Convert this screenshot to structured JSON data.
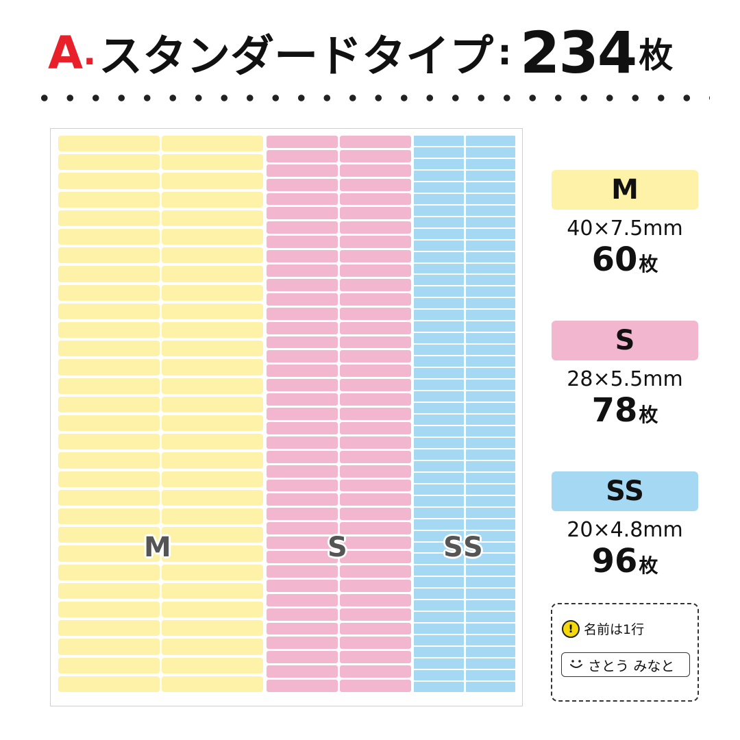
{
  "header": {
    "letter": "A",
    "dot": ".",
    "title": "スタンダードタイプ",
    "colon": ":",
    "count": "234",
    "unit": "枚"
  },
  "sheet": {
    "labels": {
      "m": "M",
      "s": "S",
      "ss": "SS"
    },
    "columns": {
      "m": {
        "labels_per_row": 2,
        "rows": 30,
        "color": "#fdf2a8"
      },
      "s": {
        "labels_per_row": 2,
        "rows": 39,
        "color": "#f3b6cf"
      },
      "ss": {
        "labels_per_row": 2,
        "rows": 48,
        "color": "#a5d8f3"
      }
    }
  },
  "legend": [
    {
      "name": "M",
      "dims": "40×7.5mm",
      "count": "60",
      "unit": "枚",
      "color": "#fdf2a8"
    },
    {
      "name": "S",
      "dims": "28×5.5mm",
      "count": "78",
      "unit": "枚",
      "color": "#f3b6cf"
    },
    {
      "name": "SS",
      "dims": "20×4.8mm",
      "count": "96",
      "unit": "枚",
      "color": "#a5d8f3"
    }
  ],
  "note": {
    "icon": "exclamation-icon",
    "text": "名前は1行",
    "sample_icon": "smiley-icon",
    "sample_text": "さとう みなと"
  },
  "colors": {
    "accent": "#e8202a",
    "warning": "#f5d90a"
  }
}
